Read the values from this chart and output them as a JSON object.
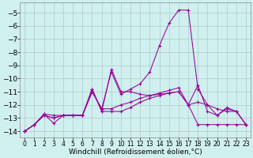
{
  "background_color": "#cff0ee",
  "grid_color": "#b0c8cc",
  "line_color": "#990099",
  "marker": "+",
  "xlabel": "Windchill (Refroidissement éolien,°C)",
  "xlabel_fontsize": 6.5,
  "ytick_fontsize": 6.5,
  "xtick_fontsize": 5.5,
  "xlim": [
    -0.5,
    23.5
  ],
  "ylim": [
    -14.5,
    -4.2
  ],
  "yticks": [
    -14,
    -13,
    -12,
    -11,
    -10,
    -9,
    -8,
    -7,
    -6,
    -5
  ],
  "s1_x": [
    0,
    1,
    2,
    3,
    4,
    5,
    6,
    7,
    8,
    9,
    10,
    11,
    12,
    13,
    14,
    15,
    16,
    17,
    18,
    19,
    20,
    21,
    22,
    23
  ],
  "s1_y": [
    -14.0,
    -13.5,
    -12.7,
    -13.4,
    -12.8,
    -12.8,
    -12.8,
    -10.8,
    -12.5,
    -9.3,
    -11.0,
    -11.0,
    -11.2,
    -11.3,
    -11.2,
    -11.1,
    -11.0,
    -12.0,
    -10.5,
    -12.5,
    -12.8,
    -12.2,
    -12.5,
    -13.5
  ],
  "s2_x": [
    0,
    1,
    2,
    3,
    4,
    5,
    6,
    7,
    8,
    9,
    10,
    11,
    12,
    13,
    14,
    15,
    16,
    17,
    18,
    19,
    20,
    21,
    22,
    23
  ],
  "s2_y": [
    -14.0,
    -13.5,
    -12.7,
    -12.8,
    -12.8,
    -12.8,
    -12.8,
    -10.8,
    -12.5,
    -12.5,
    -12.5,
    -12.2,
    -11.8,
    -11.5,
    -11.3,
    -11.1,
    -11.0,
    -12.0,
    -13.5,
    -13.5,
    -13.5,
    -13.5,
    -13.5,
    -13.5
  ],
  "s3_x": [
    0,
    1,
    2,
    3,
    4,
    5,
    6,
    7,
    8,
    9,
    10,
    11,
    12,
    13,
    14,
    15,
    16,
    17,
    18,
    19,
    20,
    21,
    22,
    23
  ],
  "s3_y": [
    -14.0,
    -13.5,
    -12.8,
    -13.0,
    -12.8,
    -12.8,
    -12.8,
    -11.0,
    -12.3,
    -9.5,
    -11.2,
    -10.8,
    -10.4,
    -9.5,
    -7.5,
    -5.8,
    -4.8,
    -4.8,
    -10.8,
    -12.0,
    -12.3,
    -12.5,
    -12.5,
    -13.5
  ],
  "s4_x": [
    0,
    1,
    2,
    3,
    4,
    5,
    6,
    7,
    8,
    9,
    10,
    11,
    12,
    13,
    14,
    15,
    16,
    17,
    18,
    19,
    20,
    21,
    22,
    23
  ],
  "s4_y": [
    -14.0,
    -13.5,
    -12.8,
    -13.0,
    -12.8,
    -12.8,
    -12.8,
    -11.0,
    -12.3,
    -12.3,
    -12.0,
    -11.8,
    -11.5,
    -11.3,
    -11.1,
    -10.9,
    -10.7,
    -12.0,
    -11.8,
    -12.0,
    -12.8,
    -12.3,
    -12.5,
    -13.5
  ]
}
